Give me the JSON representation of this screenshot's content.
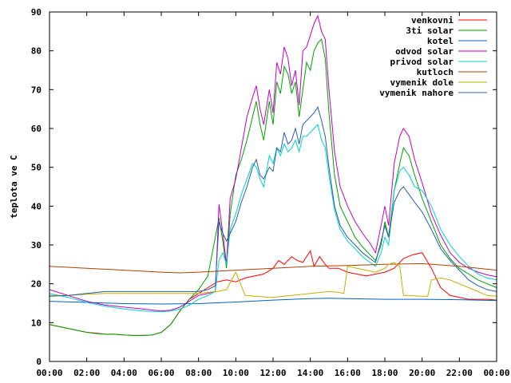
{
  "chart_data": {
    "type": "line",
    "title": "",
    "xlabel": "",
    "ylabel": "teplota ve C",
    "xlim": [
      0,
      24
    ],
    "ylim": [
      0,
      90
    ],
    "x_ticks": [
      {
        "value": 0,
        "label": "00:00"
      },
      {
        "value": 2,
        "label": "02:00"
      },
      {
        "value": 4,
        "label": "04:00"
      },
      {
        "value": 6,
        "label": "06:00"
      },
      {
        "value": 8,
        "label": "08:00"
      },
      {
        "value": 10,
        "label": "10:00"
      },
      {
        "value": 12,
        "label": "12:00"
      },
      {
        "value": 14,
        "label": "14:00"
      },
      {
        "value": 16,
        "label": "16:00"
      },
      {
        "value": 18,
        "label": "18:00"
      },
      {
        "value": 20,
        "label": "20:00"
      },
      {
        "value": 22,
        "label": "22:00"
      },
      {
        "value": 24,
        "label": "00:00"
      }
    ],
    "y_ticks": [
      {
        "value": 0,
        "label": "0"
      },
      {
        "value": 10,
        "label": "10"
      },
      {
        "value": 20,
        "label": "20"
      },
      {
        "value": 30,
        "label": "30"
      },
      {
        "value": 40,
        "label": "40"
      },
      {
        "value": 50,
        "label": "50"
      },
      {
        "value": 60,
        "label": "60"
      },
      {
        "value": 70,
        "label": "70"
      },
      {
        "value": 80,
        "label": "80"
      },
      {
        "value": 90,
        "label": "90"
      }
    ],
    "grid": false,
    "legend_position": "top-right",
    "series": [
      {
        "name": "venkovni",
        "color": "#ff0000",
        "x": [
          0,
          0.5,
          1,
          1.5,
          2,
          2.5,
          3,
          3.5,
          4,
          4.5,
          5,
          5.5,
          6,
          6.5,
          7,
          7.5,
          8,
          8.5,
          9,
          9.5,
          10,
          10.5,
          11,
          11.5,
          12,
          12.3,
          12.6,
          13,
          13.3,
          13.6,
          14,
          14.2,
          14.5,
          14.8,
          15,
          15.5,
          16,
          16.5,
          17,
          17.5,
          18,
          18.5,
          19,
          19.5,
          20,
          20.5,
          21,
          21.5,
          22,
          22.5,
          23,
          23.5,
          24
        ],
        "y": [
          9.5,
          9,
          8.5,
          8,
          7.5,
          7.3,
          7,
          7,
          6.8,
          6.7,
          6.7,
          6.8,
          7.5,
          9.5,
          13,
          16,
          17.5,
          19,
          20.5,
          21,
          20.5,
          21.5,
          22,
          22.5,
          24,
          26,
          25,
          27,
          26,
          25.5,
          28.5,
          24.5,
          27,
          25,
          24,
          24,
          23,
          22.5,
          22,
          22.5,
          23,
          24,
          26.5,
          27.5,
          28,
          24,
          19,
          17,
          16.5,
          16,
          16,
          16,
          15.8
        ]
      },
      {
        "name": "3ti solar",
        "color": "#00a000",
        "x": [
          0,
          0.5,
          1,
          1.5,
          2,
          2.5,
          3,
          3.5,
          4,
          4.5,
          5,
          5.5,
          6,
          6.5,
          7,
          7.5,
          8,
          8.5,
          8.9,
          9.1,
          9.3,
          9.5,
          9.7,
          10,
          10.3,
          10.6,
          10.9,
          11.1,
          11.3,
          11.5,
          11.8,
          12,
          12.2,
          12.4,
          12.6,
          12.8,
          13,
          13.2,
          13.4,
          13.6,
          13.8,
          14,
          14.2,
          14.4,
          14.6,
          14.8,
          15,
          15.3,
          15.6,
          16,
          16.4,
          16.8,
          17.2,
          17.5,
          17.8,
          18,
          18.2,
          18.5,
          18.8,
          19,
          19.3,
          19.6,
          20,
          20.5,
          21,
          21.5,
          22,
          22.5,
          23,
          23.5,
          24
        ],
        "y": [
          9.5,
          9,
          8.5,
          8,
          7.5,
          7.2,
          7,
          7,
          6.8,
          6.7,
          6.7,
          6.8,
          7.5,
          9.5,
          13,
          16,
          18.5,
          22,
          32,
          37,
          31,
          24,
          38,
          48,
          52,
          57,
          63,
          67,
          61,
          57,
          67,
          61,
          72,
          69,
          76,
          74,
          69,
          72,
          63,
          70,
          77,
          75,
          80,
          82,
          83,
          78,
          64,
          48,
          40,
          36,
          32,
          29.5,
          27.5,
          26,
          30,
          36,
          32,
          44,
          51,
          55,
          53,
          48,
          42,
          36,
          30,
          26.5,
          24,
          22.5,
          21,
          20,
          19
        ]
      },
      {
        "name": "kotel",
        "color": "#0060cc",
        "x": [
          0,
          2,
          4,
          6,
          8,
          10,
          12,
          14,
          15,
          16,
          18,
          20,
          22,
          24
        ],
        "y": [
          15.5,
          15.2,
          14.9,
          14.8,
          14.9,
          15.3,
          15.8,
          16.2,
          16.3,
          16.2,
          16,
          16,
          15.9,
          15.7
        ]
      },
      {
        "name": "odvod solar",
        "color": "#c000c0",
        "x": [
          0,
          1,
          2,
          3,
          4,
          5,
          6,
          6.5,
          7,
          7.5,
          8,
          8.5,
          8.9,
          9.1,
          9.3,
          9.5,
          9.7,
          10,
          10.3,
          10.6,
          10.9,
          11.1,
          11.3,
          11.5,
          11.8,
          12,
          12.2,
          12.4,
          12.6,
          12.8,
          13,
          13.2,
          13.4,
          13.6,
          13.8,
          14,
          14.2,
          14.4,
          14.6,
          14.8,
          15,
          15.3,
          15.6,
          16,
          16.4,
          16.8,
          17.2,
          17.5,
          17.8,
          18,
          18.2,
          18.5,
          18.8,
          19,
          19.3,
          19.6,
          20,
          20.5,
          21,
          21.5,
          22,
          22.5,
          23,
          23.5,
          24
        ],
        "y": [
          18.5,
          17,
          15.5,
          14.5,
          14,
          13.5,
          13,
          13.2,
          14,
          15.5,
          17,
          17.5,
          18,
          40.5,
          33,
          25,
          42,
          47,
          55,
          63,
          68,
          71,
          65,
          61,
          70,
          64,
          77,
          74,
          81,
          78,
          71,
          75,
          66,
          80,
          81,
          84,
          87,
          89,
          85,
          83,
          70,
          54,
          45,
          40,
          36,
          33,
          30.5,
          28,
          35,
          40,
          35,
          51,
          58,
          60,
          58,
          52,
          46,
          38,
          32.5,
          28,
          25.5,
          24,
          23,
          22.3,
          21.8
        ]
      },
      {
        "name": "privod solar",
        "color": "#00d0d0",
        "x": [
          0,
          1,
          2,
          3,
          4,
          5,
          6,
          6.5,
          7,
          7.5,
          8,
          8.5,
          8.9,
          9.1,
          9.3,
          9.5,
          9.7,
          10,
          10.3,
          10.6,
          10.9,
          11.1,
          11.3,
          11.5,
          11.8,
          12,
          12.2,
          12.4,
          12.6,
          12.8,
          13,
          13.2,
          13.4,
          13.6,
          13.8,
          14,
          14.2,
          14.4,
          14.6,
          14.8,
          15,
          15.3,
          15.6,
          16,
          16.4,
          16.8,
          17.2,
          17.5,
          17.8,
          18,
          18.2,
          18.5,
          18.8,
          19,
          19.3,
          19.6,
          20,
          20.5,
          21,
          21.5,
          22,
          22.5,
          23,
          23.5,
          24
        ],
        "y": [
          17.5,
          16.5,
          15.2,
          14.2,
          13.5,
          13,
          12.8,
          13,
          13.5,
          14.5,
          16,
          17,
          18,
          26,
          28,
          25,
          34,
          38,
          43,
          47,
          51,
          50,
          47,
          45,
          53,
          51,
          55,
          53,
          56,
          54,
          55,
          57,
          54,
          58,
          58,
          59,
          60,
          61,
          57,
          55,
          48,
          39,
          34,
          31,
          29,
          27,
          25.5,
          24.5,
          28,
          32,
          30,
          44,
          49,
          50,
          48,
          45,
          44,
          40,
          34,
          30,
          27,
          24.5,
          22.5,
          21.5,
          21
        ]
      },
      {
        "name": "kutloch",
        "color": "#b04000",
        "x": [
          0,
          2,
          4,
          6,
          7,
          8,
          10,
          12,
          14,
          16,
          18,
          20,
          22,
          24
        ],
        "y": [
          24.5,
          24,
          23.5,
          23,
          22.8,
          23,
          23.5,
          24,
          24.5,
          24.7,
          25,
          25.2,
          24.5,
          23.5
        ]
      },
      {
        "name": "vymenik dole",
        "color": "#c0b000",
        "x": [
          0,
          1,
          2,
          3,
          4,
          5,
          6,
          7,
          8,
          8.5,
          9,
          9.5,
          10,
          10.5,
          11,
          12,
          13,
          14,
          15,
          15.5,
          15.8,
          16,
          16.5,
          17,
          17.5,
          18,
          18.2,
          18.5,
          18.8,
          19,
          19.2,
          20,
          20.3,
          20.5,
          21,
          21.5,
          22,
          22.5,
          23,
          23.5,
          24
        ],
        "y": [
          17,
          17,
          17.3,
          17.5,
          17.5,
          17.5,
          17.5,
          17.5,
          17.5,
          17.8,
          18,
          18.5,
          23,
          17,
          16.8,
          16.5,
          17,
          17.5,
          18,
          17.8,
          17.5,
          24.5,
          24,
          23.5,
          23,
          24,
          25,
          25.5,
          24.5,
          17,
          17,
          16.8,
          16.8,
          21,
          21.5,
          21,
          20,
          19,
          18,
          17,
          16.8
        ]
      },
      {
        "name": "vymenik nahore",
        "color": "#2a5caa",
        "x": [
          0,
          1,
          2,
          3,
          4,
          5,
          6,
          6.5,
          7,
          7.5,
          8,
          8.5,
          8.9,
          9.1,
          9.3,
          9.5,
          9.7,
          10,
          10.3,
          10.6,
          10.9,
          11.1,
          11.3,
          11.5,
          11.8,
          12,
          12.2,
          12.4,
          12.6,
          12.8,
          13,
          13.2,
          13.4,
          13.6,
          13.8,
          14,
          14.2,
          14.4,
          14.6,
          14.8,
          15,
          15.3,
          15.6,
          16,
          16.4,
          16.8,
          17.2,
          17.5,
          17.8,
          18,
          18.2,
          18.5,
          18.8,
          19,
          19.3,
          19.6,
          20,
          20.5,
          21,
          21.5,
          22,
          22.5,
          23,
          23.5,
          24
        ],
        "y": [
          16.8,
          17,
          17.5,
          18,
          18,
          18,
          18,
          18,
          18,
          18,
          18,
          18.5,
          19.5,
          36,
          33,
          31,
          33,
          36,
          41,
          45,
          50,
          52,
          48,
          47,
          50,
          49,
          55,
          54,
          59,
          56,
          57,
          60,
          56,
          61,
          62,
          63,
          64,
          65.5,
          62,
          58,
          50,
          40,
          35,
          32,
          30,
          28,
          26.5,
          25.5,
          31,
          35,
          32,
          41,
          44,
          45,
          43,
          41,
          38.5,
          34,
          29,
          26,
          23.5,
          21,
          19.5,
          18.5,
          18
        ]
      }
    ]
  }
}
